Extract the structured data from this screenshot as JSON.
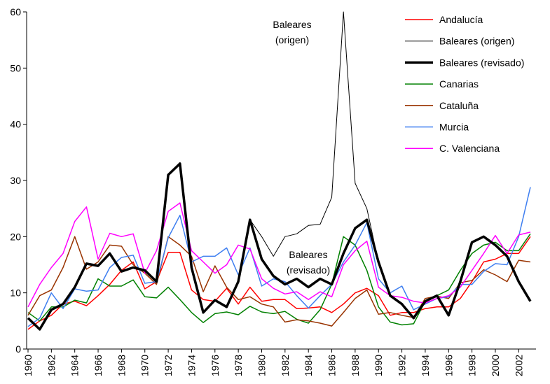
{
  "chart_data": {
    "type": "line",
    "x": [
      1960,
      1961,
      1962,
      1963,
      1964,
      1965,
      1966,
      1967,
      1968,
      1969,
      1970,
      1971,
      1972,
      1973,
      1974,
      1975,
      1976,
      1977,
      1978,
      1979,
      1980,
      1981,
      1982,
      1983,
      1984,
      1985,
      1986,
      1987,
      1988,
      1989,
      1990,
      1991,
      1992,
      1993,
      1994,
      1995,
      1996,
      1997,
      1998,
      1999,
      2000,
      2001,
      2002,
      2003
    ],
    "xlim": [
      1960,
      2003
    ],
    "xticks": [
      1960,
      1962,
      1964,
      1966,
      1968,
      1970,
      1972,
      1974,
      1976,
      1978,
      1980,
      1982,
      1984,
      1986,
      1988,
      1990,
      1992,
      1994,
      1996,
      1998,
      2000,
      2002
    ],
    "ylim": [
      0,
      60
    ],
    "yticks": [
      0,
      10,
      20,
      30,
      40,
      50,
      60
    ],
    "grid": false,
    "legend": "top-right",
    "annotations": [
      [
        "Baleares",
        "(origen)"
      ],
      [
        "Baleares",
        "(revisado)"
      ]
    ],
    "series": [
      {
        "name": "Andalucía",
        "color": "#ff0000",
        "width": 1.5,
        "values": [
          3.5,
          5,
          6,
          8,
          8.5,
          7.7,
          9.5,
          11.5,
          14,
          15.5,
          10.7,
          12,
          17.2,
          17.2,
          10.5,
          8.8,
          8.5,
          10.8,
          8,
          11,
          8.5,
          8.8,
          8.8,
          7.2,
          7.3,
          7.5,
          6.5,
          8,
          10,
          10.8,
          9.5,
          6,
          6.5,
          6.5,
          7.2,
          7.5,
          7.5,
          9,
          12,
          15.5,
          16,
          17,
          17,
          20
        ]
      },
      {
        "name": "Baleares (origen)",
        "color": "#000000",
        "width": 1,
        "values": [
          5.5,
          3.5,
          7,
          8,
          11,
          15.2,
          14.8,
          17,
          13.8,
          14.5,
          14,
          12,
          31,
          33,
          14.5,
          6.5,
          8.7,
          7.5,
          12,
          23,
          20,
          16.5,
          20,
          20.5,
          22,
          22.2,
          27,
          60,
          29.5,
          25,
          15.5,
          9.5,
          8,
          5.5,
          8.5,
          9.5,
          6,
          12,
          19,
          20,
          18.5,
          16.5,
          12,
          8.5
        ]
      },
      {
        "name": "Baleares (revisado)",
        "color": "#000000",
        "width": 3.5,
        "values": [
          5.5,
          3.5,
          7,
          8,
          11,
          15.2,
          14.8,
          17,
          13.8,
          14.5,
          14,
          12,
          31,
          33,
          14.5,
          6.5,
          8.7,
          7.5,
          12,
          23,
          16,
          13,
          11.5,
          12.5,
          11,
          12.5,
          11.5,
          17,
          21.5,
          23,
          15.5,
          9.5,
          8,
          5.5,
          8.5,
          9.5,
          6,
          12,
          19,
          20,
          18.5,
          16.5,
          12,
          8.5
        ]
      },
      {
        "name": "Canarias",
        "color": "#008000",
        "width": 1.5,
        "values": [
          6.5,
          5,
          7.5,
          7.5,
          8.7,
          8.2,
          12.5,
          11.2,
          11.2,
          12.3,
          9.3,
          9.1,
          11,
          8.8,
          6.5,
          4.7,
          6.3,
          6.6,
          6.1,
          7.6,
          6.6,
          6.3,
          6.7,
          5.3,
          4.6,
          7,
          11.5,
          20,
          18.5,
          14,
          7.5,
          4.8,
          4.3,
          4.5,
          8.5,
          9.5,
          10.5,
          14,
          17,
          18.5,
          19,
          17.5,
          17.5,
          20.5
        ]
      },
      {
        "name": "Cataluña",
        "color": "#993300",
        "width": 1.5,
        "values": [
          6,
          9.5,
          10.5,
          14.5,
          20,
          14.2,
          15.5,
          18.5,
          18.3,
          15,
          13.5,
          11.5,
          20,
          18.5,
          16.5,
          10.2,
          14.8,
          11,
          8.8,
          9.3,
          8,
          7.5,
          4.8,
          5.2,
          5,
          4.6,
          4.1,
          6.5,
          9,
          10.5,
          6.2,
          6.5,
          6,
          5.6,
          9,
          9.4,
          9,
          11.8,
          12.2,
          14.1,
          13.2,
          12,
          15.8,
          15.5
        ]
      },
      {
        "name": "Murcia",
        "color": "#3f7ff0",
        "width": 1.5,
        "values": [
          4,
          5.5,
          10,
          7.2,
          10.7,
          10.3,
          10.5,
          14.5,
          16.3,
          16.7,
          11.7,
          12,
          19.8,
          23.8,
          15.5,
          16.5,
          16.5,
          18,
          13.2,
          18,
          11.2,
          12.5,
          12,
          9.5,
          7.3,
          9.5,
          11.5,
          15.5,
          18.5,
          22.5,
          12.5,
          10,
          11.2,
          7,
          8,
          9,
          9.3,
          11.5,
          11.5,
          13.8,
          15.2,
          15,
          20,
          28.8
        ]
      },
      {
        "name": "C. Valenciana",
        "color": "#ff00ff",
        "width": 1.5,
        "values": [
          7.5,
          11.5,
          14.5,
          17,
          22.7,
          25.3,
          16,
          20.6,
          20,
          20.5,
          13.5,
          17.5,
          24.5,
          26,
          17.5,
          15.5,
          13.5,
          15,
          18.5,
          17.8,
          12.5,
          10.8,
          9.8,
          10.2,
          8.8,
          10.2,
          9.3,
          15,
          17.5,
          19.2,
          11,
          9.5,
          9.2,
          8.5,
          8.2,
          9,
          9.5,
          11,
          14,
          17,
          20.2,
          17,
          20.3,
          20.8
        ]
      }
    ]
  }
}
